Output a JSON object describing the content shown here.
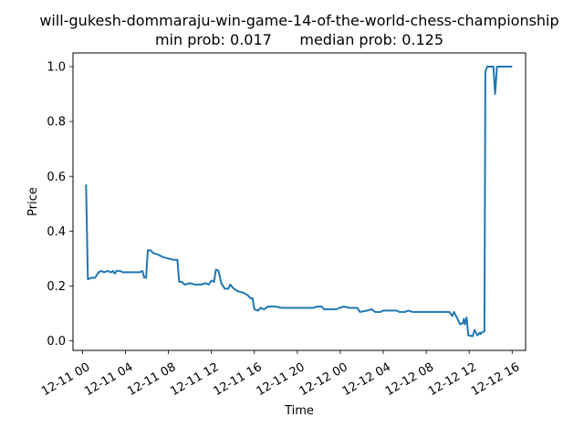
{
  "chart_data": {
    "type": "line",
    "title_line1": "will-gukesh-dommaraju-win-game-14-of-the-world-chess-championship",
    "title_line2": "min prob: 0.017      median prob: 0.125",
    "xlabel": "Time",
    "ylabel": "Price",
    "xlim": [
      "2024-12-10 23:07",
      "2024-12-12 17:15"
    ],
    "ylim": [
      -0.035,
      1.05
    ],
    "x_ticks": [
      {
        "t": "2024-12-11 00:00",
        "label": "12-11 00"
      },
      {
        "t": "2024-12-11 04:00",
        "label": "12-11 04"
      },
      {
        "t": "2024-12-11 08:00",
        "label": "12-11 08"
      },
      {
        "t": "2024-12-11 12:00",
        "label": "12-11 12"
      },
      {
        "t": "2024-12-11 16:00",
        "label": "12-11 16"
      },
      {
        "t": "2024-12-11 20:00",
        "label": "12-11 20"
      },
      {
        "t": "2024-12-12 00:00",
        "label": "12-12 00"
      },
      {
        "t": "2024-12-12 04:00",
        "label": "12-12 04"
      },
      {
        "t": "2024-12-12 08:00",
        "label": "12-12 08"
      },
      {
        "t": "2024-12-12 12:00",
        "label": "12-12 12"
      },
      {
        "t": "2024-12-12 16:00",
        "label": "12-12 16"
      }
    ],
    "y_ticks": [
      {
        "v": 0.0,
        "label": "0.0"
      },
      {
        "v": 0.2,
        "label": "0.2"
      },
      {
        "v": 0.4,
        "label": "0.4"
      },
      {
        "v": 0.6,
        "label": "0.6"
      },
      {
        "v": 0.8,
        "label": "0.8"
      },
      {
        "v": 1.0,
        "label": "1.0"
      }
    ],
    "grid": false,
    "series": [
      {
        "color": "#1f77b4",
        "points": [
          [
            "2024-12-11 00:20",
            0.57
          ],
          [
            "2024-12-11 00:30",
            0.225
          ],
          [
            "2024-12-11 00:50",
            0.23
          ],
          [
            "2024-12-11 01:10",
            0.23
          ],
          [
            "2024-12-11 01:30",
            0.25
          ],
          [
            "2024-12-11 01:45",
            0.255
          ],
          [
            "2024-12-11 02:00",
            0.25
          ],
          [
            "2024-12-11 02:20",
            0.255
          ],
          [
            "2024-12-11 02:40",
            0.25
          ],
          [
            "2024-12-11 02:50",
            0.255
          ],
          [
            "2024-12-11 03:00",
            0.245
          ],
          [
            "2024-12-11 03:10",
            0.255
          ],
          [
            "2024-12-11 03:30",
            0.255
          ],
          [
            "2024-12-11 03:45",
            0.25
          ],
          [
            "2024-12-11 05:20",
            0.25
          ],
          [
            "2024-12-11 05:35",
            0.255
          ],
          [
            "2024-12-11 05:45",
            0.23
          ],
          [
            "2024-12-11 05:55",
            0.23
          ],
          [
            "2024-12-11 06:05",
            0.33
          ],
          [
            "2024-12-11 06:20",
            0.33
          ],
          [
            "2024-12-11 06:35",
            0.32
          ],
          [
            "2024-12-11 07:00",
            0.315
          ],
          [
            "2024-12-11 07:30",
            0.305
          ],
          [
            "2024-12-11 08:00",
            0.3
          ],
          [
            "2024-12-11 08:30",
            0.295
          ],
          [
            "2024-12-11 08:50",
            0.295
          ],
          [
            "2024-12-11 09:00",
            0.215
          ],
          [
            "2024-12-11 09:15",
            0.215
          ],
          [
            "2024-12-11 09:30",
            0.205
          ],
          [
            "2024-12-11 10:00",
            0.21
          ],
          [
            "2024-12-11 10:30",
            0.205
          ],
          [
            "2024-12-11 11:00",
            0.205
          ],
          [
            "2024-12-11 11:30",
            0.21
          ],
          [
            "2024-12-11 11:45",
            0.205
          ],
          [
            "2024-12-11 12:00",
            0.22
          ],
          [
            "2024-12-11 12:15",
            0.215
          ],
          [
            "2024-12-11 12:25",
            0.26
          ],
          [
            "2024-12-11 12:40",
            0.255
          ],
          [
            "2024-12-11 12:55",
            0.21
          ],
          [
            "2024-12-11 13:15",
            0.19
          ],
          [
            "2024-12-11 13:35",
            0.19
          ],
          [
            "2024-12-11 13:45",
            0.205
          ],
          [
            "2024-12-11 14:05",
            0.19
          ],
          [
            "2024-12-11 14:30",
            0.18
          ],
          [
            "2024-12-11 15:00",
            0.175
          ],
          [
            "2024-12-11 15:25",
            0.165
          ],
          [
            "2024-12-11 15:40",
            0.155
          ],
          [
            "2024-12-11 15:50",
            0.155
          ],
          [
            "2024-12-11 16:00",
            0.115
          ],
          [
            "2024-12-11 16:20",
            0.11
          ],
          [
            "2024-12-11 16:35",
            0.12
          ],
          [
            "2024-12-11 16:55",
            0.115
          ],
          [
            "2024-12-11 17:15",
            0.125
          ],
          [
            "2024-12-11 18:00",
            0.125
          ],
          [
            "2024-12-11 18:30",
            0.12
          ],
          [
            "2024-12-11 20:00",
            0.12
          ],
          [
            "2024-12-11 21:30",
            0.12
          ],
          [
            "2024-12-11 21:50",
            0.125
          ],
          [
            "2024-12-11 22:15",
            0.125
          ],
          [
            "2024-12-11 22:30",
            0.115
          ],
          [
            "2024-12-11 23:40",
            0.115
          ],
          [
            "2024-12-11 23:55",
            0.12
          ],
          [
            "2024-12-12 00:20",
            0.125
          ],
          [
            "2024-12-12 00:50",
            0.12
          ],
          [
            "2024-12-12 01:15",
            0.12
          ],
          [
            "2024-12-12 01:35",
            0.12
          ],
          [
            "2024-12-12 01:50",
            0.105
          ],
          [
            "2024-12-12 02:30",
            0.11
          ],
          [
            "2024-12-12 02:55",
            0.115
          ],
          [
            "2024-12-12 03:15",
            0.105
          ],
          [
            "2024-12-12 03:45",
            0.105
          ],
          [
            "2024-12-12 04:00",
            0.11
          ],
          [
            "2024-12-12 05:15",
            0.11
          ],
          [
            "2024-12-12 05:30",
            0.105
          ],
          [
            "2024-12-12 06:00",
            0.105
          ],
          [
            "2024-12-12 06:20",
            0.11
          ],
          [
            "2024-12-12 06:45",
            0.105
          ],
          [
            "2024-12-12 10:10",
            0.105
          ],
          [
            "2024-12-12 10:25",
            0.09
          ],
          [
            "2024-12-12 10:35",
            0.105
          ],
          [
            "2024-12-12 10:55",
            0.08
          ],
          [
            "2024-12-12 11:10",
            0.06
          ],
          [
            "2024-12-12 11:25",
            0.065
          ],
          [
            "2024-12-12 11:30",
            0.08
          ],
          [
            "2024-12-12 11:35",
            0.06
          ],
          [
            "2024-12-12 11:45",
            0.085
          ],
          [
            "2024-12-12 11:55",
            0.02
          ],
          [
            "2024-12-12 12:20",
            0.017
          ],
          [
            "2024-12-12 12:30",
            0.04
          ],
          [
            "2024-12-12 12:45",
            0.02
          ],
          [
            "2024-12-12 13:00",
            0.03
          ],
          [
            "2024-12-12 13:05",
            0.025
          ],
          [
            "2024-12-12 13:10",
            0.03
          ],
          [
            "2024-12-12 13:25",
            0.035
          ],
          [
            "2024-12-12 13:30",
            0.98
          ],
          [
            "2024-12-12 13:40",
            1.0
          ],
          [
            "2024-12-12 14:15",
            1.0
          ],
          [
            "2024-12-12 14:25",
            0.9
          ],
          [
            "2024-12-12 14:35",
            1.0
          ],
          [
            "2024-12-12 15:00",
            1.0
          ],
          [
            "2024-12-12 16:00",
            1.0
          ]
        ]
      }
    ]
  }
}
